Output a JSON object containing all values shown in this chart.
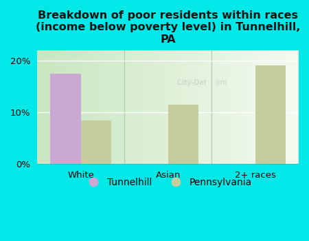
{
  "title": "Breakdown of poor residents within races\n(income below poverty level) in Tunnelhill,\nPA",
  "categories": [
    "White",
    "Asian",
    "2+ races"
  ],
  "tunnelhill_values": [
    17.5,
    0,
    0
  ],
  "pennsylvania_values": [
    8.5,
    11.5,
    19.0
  ],
  "tunnelhill_color": "#c9a8d4",
  "pennsylvania_color": "#c5cc9e",
  "background_color": "#00e8e8",
  "plot_bg_left": "#c8e6c0",
  "plot_bg_right": "#f5faf0",
  "ylim": [
    0,
    22
  ],
  "yticks": [
    0,
    10,
    20
  ],
  "ytick_labels": [
    "0%",
    "10%",
    "20%"
  ],
  "bar_width": 0.35,
  "title_fontsize": 11.5,
  "legend_labels": [
    "Tunnelhill",
    "Pennsylvania"
  ]
}
